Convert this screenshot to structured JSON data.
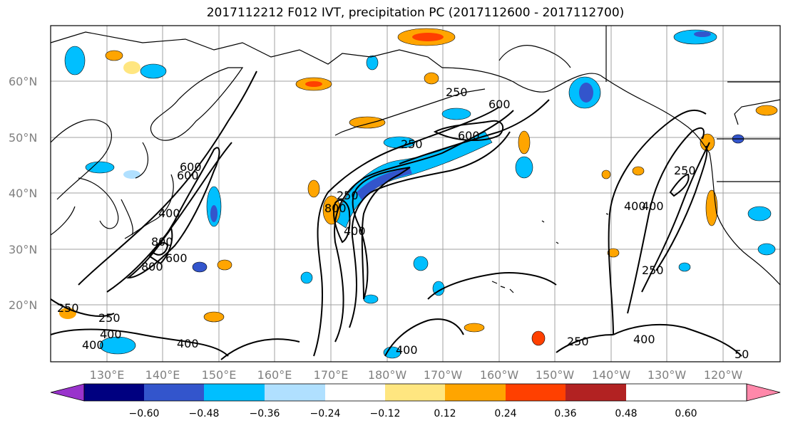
{
  "title": "2017112212 F012 IVT, precipitation PC (2017112600 - 2017112700)",
  "latitude_labels": [
    "60°N",
    "50°N",
    "40°N",
    "30°N",
    "20°N"
  ],
  "longitude_labels": [
    "130°E",
    "140°E",
    "150°E",
    "160°E",
    "170°E",
    "180°W",
    "170°W",
    "160°W",
    "150°W",
    "140°W",
    "130°W",
    "120°W"
  ],
  "colorbar": {
    "colors": [
      "#9933cc",
      "#000080",
      "#3355cc",
      "#00bfff",
      "#b0e0ff",
      "#ffffff",
      "#ffe680",
      "#ffa500",
      "#ff4000",
      "#b22222",
      "#ff88aa"
    ],
    "tick_labels": [
      "−0.60",
      "−0.48",
      "−0.36",
      "−0.24",
      "−0.12",
      "0.12",
      "0.24",
      "0.36",
      "0.48",
      "0.60"
    ]
  },
  "contour_labels": [
    {
      "text": "600"
    },
    {
      "text": "400"
    },
    {
      "text": "800"
    },
    {
      "text": "600"
    },
    {
      "text": "600"
    },
    {
      "text": "800"
    },
    {
      "text": "250"
    },
    {
      "text": "400"
    },
    {
      "text": "400"
    },
    {
      "text": "400"
    },
    {
      "text": "250"
    },
    {
      "text": "800"
    },
    {
      "text": "400"
    },
    {
      "text": "250"
    },
    {
      "text": "250"
    },
    {
      "text": "400"
    },
    {
      "text": "600"
    },
    {
      "text": "250"
    },
    {
      "text": "600"
    },
    {
      "text": "400"
    },
    {
      "text": "400"
    },
    {
      "text": "250"
    },
    {
      "text": "400"
    },
    {
      "text": "250"
    },
    {
      "text": "250"
    },
    {
      "text": "50"
    }
  ]
}
